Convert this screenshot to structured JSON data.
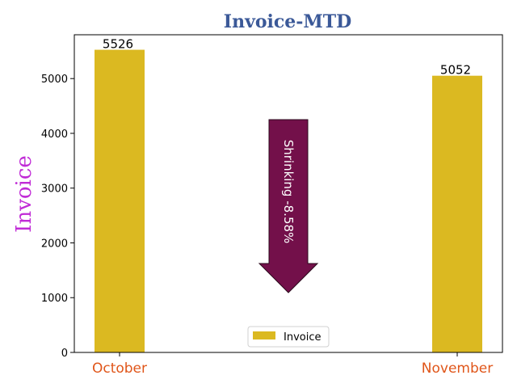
{
  "chart_data": {
    "type": "bar",
    "title": "Invoice-MTD",
    "ylabel": "Invoice",
    "xlabel": "",
    "categories": [
      "October",
      "November"
    ],
    "series": [
      {
        "name": "Invoice",
        "values": [
          5526,
          5052
        ]
      }
    ],
    "data_labels": [
      "5526",
      "5052"
    ],
    "ylim": [
      0,
      5800
    ],
    "yticks": [
      0,
      1000,
      2000,
      3000,
      4000,
      5000
    ],
    "ytick_labels": [
      "0",
      "1000",
      "2000",
      "3000",
      "4000",
      "5000"
    ],
    "grid": false,
    "legend": "bottom-center",
    "annotation": {
      "text": "Shrinking  -8.58%",
      "direction": "down"
    },
    "colors": {
      "bar": "#DBB921",
      "title": "#3B5998",
      "ylabel": "#C02BD6",
      "xtick": "#E0561A",
      "arrow": "#73104A"
    }
  }
}
